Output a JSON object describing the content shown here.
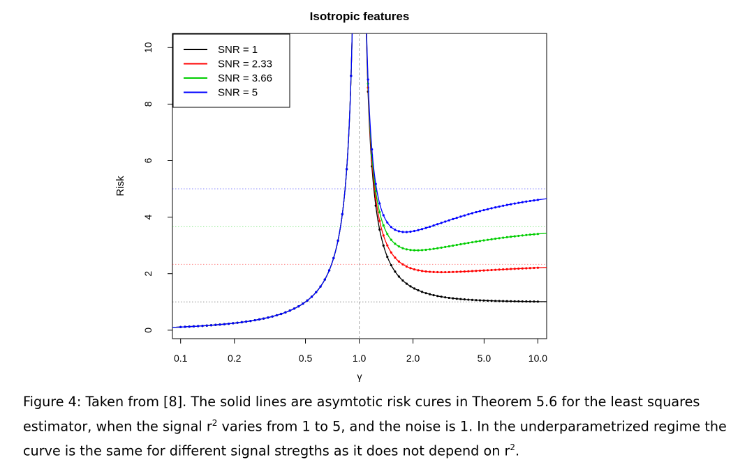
{
  "chart_data": {
    "type": "line",
    "title": "Isotropic features",
    "xlabel": "γ",
    "ylabel": "Risk",
    "xscale": "log",
    "xlim": [
      0.09,
      11.2
    ],
    "ylim": [
      -0.3,
      10.5
    ],
    "x_ticks": [
      0.1,
      0.2,
      0.5,
      1.0,
      2.0,
      5.0,
      10.0
    ],
    "x_tick_labels": [
      "0.1",
      "0.2",
      "0.5",
      "1.0",
      "2.0",
      "5.0",
      "10.0"
    ],
    "y_ticks": [
      0,
      2,
      4,
      6,
      8,
      10
    ],
    "y_tick_labels": [
      "0",
      "2",
      "4",
      "6",
      "8",
      "10"
    ],
    "noise_level": 1,
    "interpolation_threshold": 1.0,
    "legend_position": "top-left",
    "series": [
      {
        "name": "SNR = 1",
        "snr": 1,
        "color": "#000000"
      },
      {
        "name": "SNR = 2.33",
        "snr": 2.33,
        "color": "#ff0000"
      },
      {
        "name": "SNR = 3.66",
        "snr": 3.66,
        "color": "#00cd00"
      },
      {
        "name": "SNR = 5",
        "snr": 5,
        "color": "#0000ff"
      }
    ]
  },
  "caption": {
    "prefix": "Figure 4: Taken from [8]. The solid lines are asymtotic risk cures in Theorem 5.6 for the least squares estimator, when the signal r",
    "sup1": "2",
    "middle": " varies from 1 to 5, and the noise is 1. In the underparametrized regime the curve is the same for different signal stregths as it does not depend on r",
    "sup2": "2",
    "suffix": "."
  }
}
